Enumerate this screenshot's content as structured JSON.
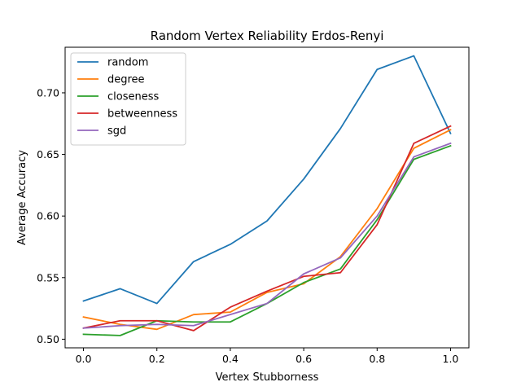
{
  "chart_data": {
    "type": "line",
    "title": "Random Vertex Reliability Erdos-Renyi",
    "xlabel": "Vertex Stubborness",
    "ylabel": "Average Accuracy",
    "xlim": [
      -0.05,
      1.05
    ],
    "ylim": [
      0.493,
      0.737
    ],
    "xticks": [
      0.0,
      0.2,
      0.4,
      0.6,
      0.8,
      1.0
    ],
    "xtick_labels": [
      "0.0",
      "0.2",
      "0.4",
      "0.6",
      "0.8",
      "1.0"
    ],
    "yticks": [
      0.5,
      0.55,
      0.6,
      0.65,
      0.7
    ],
    "ytick_labels": [
      "0.50",
      "0.55",
      "0.60",
      "0.65",
      "0.70"
    ],
    "grid": false,
    "legend_position": "top-left",
    "x": [
      0.0,
      0.1,
      0.2,
      0.3,
      0.4,
      0.5,
      0.6,
      0.7,
      0.8,
      0.9,
      1.0
    ],
    "series": [
      {
        "name": "random",
        "color": "#1f77b4",
        "values": [
          0.531,
          0.541,
          0.529,
          0.563,
          0.577,
          0.596,
          0.63,
          0.671,
          0.719,
          0.73,
          0.667
        ]
      },
      {
        "name": "degree",
        "color": "#ff7f0e",
        "values": [
          0.518,
          0.512,
          0.508,
          0.52,
          0.522,
          0.538,
          0.545,
          0.567,
          0.606,
          0.655,
          0.67
        ]
      },
      {
        "name": "closeness",
        "color": "#2ca02c",
        "values": [
          0.504,
          0.503,
          0.515,
          0.514,
          0.514,
          0.529,
          0.546,
          0.557,
          0.597,
          0.646,
          0.657
        ]
      },
      {
        "name": "betweenness",
        "color": "#d62728",
        "values": [
          0.509,
          0.515,
          0.515,
          0.507,
          0.526,
          0.539,
          0.551,
          0.554,
          0.593,
          0.659,
          0.673
        ]
      },
      {
        "name": "sgd",
        "color": "#9467bd",
        "values": [
          0.509,
          0.511,
          0.512,
          0.511,
          0.52,
          0.529,
          0.553,
          0.566,
          0.6,
          0.648,
          0.659
        ]
      }
    ]
  }
}
